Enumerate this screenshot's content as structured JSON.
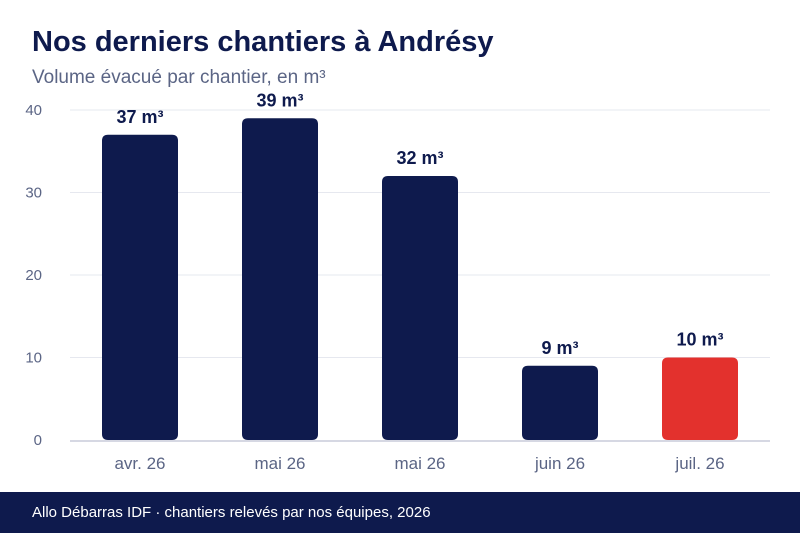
{
  "title": "Nos derniers chantiers à Andrésy",
  "subtitle": "Volume évacué par chantier, en m³",
  "footer": "Allo Débarras IDF · chantiers relevés par nos équipes, 2026",
  "colors": {
    "primary": "#0e1a4d",
    "highlight": "#e3312d",
    "gridline": "#e6e8ef",
    "axis_text": "#5b6585"
  },
  "chart_data": {
    "type": "bar",
    "categories": [
      "avr. 26",
      "mai 26",
      "mai 26",
      "juin 26",
      "juil. 26"
    ],
    "values": [
      37,
      39,
      32,
      9,
      10
    ],
    "data_labels": [
      "37 m³",
      "39 m³",
      "32 m³",
      "9 m³",
      "10 m³"
    ],
    "highlighted_index": 4,
    "ylim": [
      0,
      40
    ],
    "yticks": [
      0,
      10,
      20,
      30,
      40
    ],
    "grid": true,
    "xlabel": "",
    "ylabel": ""
  }
}
